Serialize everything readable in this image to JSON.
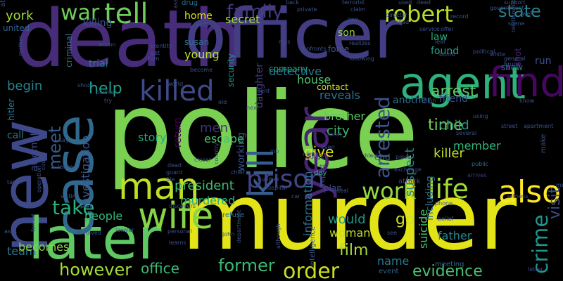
{
  "words": [
    {
      "text": "police",
      "color": "#7ad151",
      "rot": 0
    },
    {
      "text": "murder",
      "color": "#e2e418",
      "rot": 0
    },
    {
      "text": "death",
      "color": "#472c7a",
      "rot": 0
    },
    {
      "text": "officer",
      "color": "#433d84",
      "rot": 0
    },
    {
      "text": "new",
      "color": "#3e4989",
      "rot": -90
    },
    {
      "text": "later",
      "color": "#5ec962",
      "rot": 0
    },
    {
      "text": "case",
      "color": "#31688e",
      "rot": -90
    },
    {
      "text": "agent",
      "color": "#2db27d",
      "rot": 0
    },
    {
      "text": "year",
      "color": "#482475",
      "rot": -90
    },
    {
      "text": "kill",
      "color": "#365c8d",
      "rot": -90
    },
    {
      "text": "find",
      "color": "#46085c",
      "rot": 0
    },
    {
      "text": "killed",
      "color": "#3e4a89",
      "rot": 0
    },
    {
      "text": "man",
      "color": "#bddf26",
      "rot": 0
    },
    {
      "text": "wife",
      "color": "#86d549",
      "rot": 0
    },
    {
      "text": "prison",
      "color": "#414487",
      "rot": 0
    },
    {
      "text": "life",
      "color": "#a2da37",
      "rot": 0
    },
    {
      "text": "also",
      "color": "#fde725",
      "rot": 0
    },
    {
      "text": "work",
      "color": "#95d840",
      "rot": 0
    },
    {
      "text": "take",
      "color": "#29af7f",
      "rot": 0
    },
    {
      "text": "tell",
      "color": "#6ccd5a",
      "rot": 0
    },
    {
      "text": "family",
      "color": "#443983",
      "rot": 0
    },
    {
      "text": "robert",
      "color": "#b8de29",
      "rot": 0
    },
    {
      "text": "state",
      "color": "#26828e",
      "rot": 0
    },
    {
      "text": "war",
      "color": "#6ece58",
      "rot": 0
    },
    {
      "text": "killing",
      "color": "#3b528b",
      "rot": 0
    },
    {
      "text": "york",
      "color": "#a0da39",
      "rot": 0
    },
    {
      "text": "home",
      "color": "#dde318",
      "rot": 0
    },
    {
      "text": "secret",
      "color": "#a5db36",
      "rot": 0
    },
    {
      "text": "drug",
      "color": "#2c728e",
      "rot": 0
    },
    {
      "text": "son",
      "color": "#98d83e",
      "rot": 0
    },
    {
      "text": "law",
      "color": "#26ad81",
      "rot": 0
    },
    {
      "text": "found",
      "color": "#1fa187",
      "rot": 0
    },
    {
      "text": "help",
      "color": "#1f9e89",
      "rot": 0
    },
    {
      "text": "begin",
      "color": "#25848e",
      "rot": 0
    },
    {
      "text": "meet",
      "color": "#38588c",
      "rot": -90
    },
    {
      "text": "arrest",
      "color": "#5ec962",
      "rot": 0
    },
    {
      "text": "arrested",
      "color": "#3b528b",
      "rot": -90
    },
    {
      "text": "detective",
      "color": "#2a768e",
      "rot": 0
    },
    {
      "text": "house",
      "color": "#50c46a",
      "rot": 0
    },
    {
      "text": "reveals",
      "color": "#2c738e",
      "rot": 0
    },
    {
      "text": "contact",
      "color": "#cde11d",
      "rot": 0
    },
    {
      "text": "another",
      "color": "#2e6f8e",
      "rot": 0
    },
    {
      "text": "friend",
      "color": "#3a538b",
      "rot": 0
    },
    {
      "text": "show",
      "color": "#2a788e",
      "rot": 0
    },
    {
      "text": "brother",
      "color": "#5ec962",
      "rot": 0
    },
    {
      "text": "city",
      "color": "#3aba76",
      "rot": 0
    },
    {
      "text": "time",
      "color": "#7ad151",
      "rot": 0
    },
    {
      "text": "child",
      "color": "#1f978b",
      "rot": 0
    },
    {
      "text": "member",
      "color": "#2fb47c",
      "rot": 0
    },
    {
      "text": "killer",
      "color": "#c2df23",
      "rot": 0
    },
    {
      "text": "give",
      "color": "#e5e419",
      "rot": 0
    },
    {
      "text": "story",
      "color": "#21a685",
      "rot": 0
    },
    {
      "text": "men",
      "color": "#46327e",
      "rot": 0
    },
    {
      "text": "escape",
      "color": "#4ac16d",
      "rot": 0
    },
    {
      "text": "president",
      "color": "#3dbc74",
      "rot": 0
    },
    {
      "text": "murdered",
      "color": "#25ab82",
      "rot": 0
    },
    {
      "text": "people",
      "color": "#35b779",
      "rot": 0
    },
    {
      "text": "would",
      "color": "#1f958b",
      "rot": 0
    },
    {
      "text": "go",
      "color": "#d0e11c",
      "rot": 0
    },
    {
      "text": "woman",
      "color": "#c0df25",
      "rot": 0
    },
    {
      "text": "film",
      "color": "#a8db34",
      "rot": 0
    },
    {
      "text": "name",
      "color": "#2a788e",
      "rot": 0
    },
    {
      "text": "father",
      "color": "#26828e",
      "rot": 0
    },
    {
      "text": "however",
      "color": "#a5db36",
      "rot": 0
    },
    {
      "text": "office",
      "color": "#3dbc74",
      "rot": 0
    },
    {
      "text": "former",
      "color": "#3aba76",
      "rot": 0
    },
    {
      "text": "order",
      "color": "#c8e020",
      "rot": 0
    },
    {
      "text": "evidence",
      "color": "#48c16e",
      "rot": 0
    },
    {
      "text": "crime",
      "color": "#1f958b",
      "rot": -90
    },
    {
      "text": "visit",
      "color": "#3e4989",
      "rot": -90
    },
    {
      "text": "team",
      "color": "#2a788e",
      "rot": 0
    },
    {
      "text": "becomes",
      "color": "#8bd646",
      "rot": 0
    },
    {
      "text": "investigation",
      "color": "#39568c",
      "rot": -90
    },
    {
      "text": "return",
      "color": "#440154",
      "rot": -90
    },
    {
      "text": "information",
      "color": "#2c728e",
      "rot": -90
    },
    {
      "text": "suspect",
      "color": "#27808e",
      "rot": -90
    },
    {
      "text": "suicide",
      "color": "#46c06f",
      "rot": -90
    },
    {
      "text": "working",
      "color": "#3b528b",
      "rot": -90
    },
    {
      "text": "including",
      "color": "#2e6e8e",
      "rot": -90
    },
    {
      "text": "young",
      "color": "#bddf26",
      "rot": 0
    },
    {
      "text": "susan",
      "color": "#2e6f8e",
      "rot": 0
    },
    {
      "text": "criminal",
      "color": "#2d708e",
      "rot": -90
    },
    {
      "text": "attempt",
      "color": "#3f4889",
      "rot": -90
    },
    {
      "text": "united",
      "color": "#355f8d",
      "rot": 0
    },
    {
      "text": "hitler",
      "color": "#2c738e",
      "rot": -90
    },
    {
      "text": "call",
      "color": "#29798e",
      "rot": 0
    },
    {
      "text": "trial",
      "color": "#2a778e",
      "rot": 0
    },
    {
      "text": "security",
      "color": "#21918c",
      "rot": -90
    },
    {
      "text": "company",
      "color": "#1f9e89",
      "rot": 0
    },
    {
      "text": "daughter",
      "color": "#443a83",
      "rot": -90
    },
    {
      "text": "force",
      "color": "#3b528b",
      "rot": 0
    },
    {
      "text": "end",
      "color": "#31688e",
      "rot": 0
    },
    {
      "text": "day",
      "color": "#2db27d",
      "rot": 0
    },
    {
      "text": "plan",
      "color": "#3f4788",
      "rot": 0
    },
    {
      "text": "report",
      "color": "#404688",
      "rot": -90
    },
    {
      "text": "make",
      "color": "#3b528b",
      "rot": -90
    },
    {
      "text": "shot",
      "color": "#482374",
      "rot": -90
    },
    {
      "text": "run",
      "color": "#3b528b",
      "rot": 0
    },
    {
      "text": "meeting",
      "color": "#31688e",
      "rot": 0
    },
    {
      "text": "event",
      "color": "#31688e",
      "rot": 0
    },
    {
      "text": "intelligence",
      "color": "#3b528b",
      "rot": -90
    },
    {
      "text": "refuse",
      "color": "#2d708e",
      "rot": 0
    },
    {
      "text": "attack",
      "color": "#404588",
      "rot": 0
    },
    {
      "text": "know",
      "color": "#3b528b",
      "rot": 0
    },
    {
      "text": "using",
      "color": "#39568c",
      "rot": 0
    },
    {
      "text": "public",
      "color": "#2c738e",
      "rot": 0
    },
    {
      "text": "arrives",
      "color": "#453781",
      "rot": 0
    },
    {
      "text": "witness",
      "color": "#3e4989",
      "rot": 0
    },
    {
      "text": "letter",
      "color": "#3f4788",
      "rot": 0
    },
    {
      "text": "deal",
      "color": "#3b528b",
      "rot": 0
    },
    {
      "text": "place",
      "color": "#3b528b",
      "rot": 0
    },
    {
      "text": "exchange",
      "color": "#3e4989",
      "rot": 0
    },
    {
      "text": "black",
      "color": "#46327e",
      "rot": 0
    },
    {
      "text": "judge",
      "color": "#424086",
      "rot": 0
    },
    {
      "text": "named",
      "color": "#3b528b",
      "rot": 0
    },
    {
      "text": "even",
      "color": "#3b528b",
      "rot": 0
    },
    {
      "text": "local",
      "color": "#3e4989",
      "rot": 0
    },
    {
      "text": "high",
      "color": "#3e4989",
      "rot": 0
    },
    {
      "text": "director",
      "color": "#3b528b",
      "rot": 0
    },
    {
      "text": "lead",
      "color": "#3b528b",
      "rot": 0
    },
    {
      "text": "service",
      "color": "#3b528b",
      "rot": 0
    },
    {
      "text": "leaf",
      "color": "#39568c",
      "rot": 0
    },
    {
      "text": "bomb",
      "color": "#3b528b",
      "rot": 0
    },
    {
      "text": "offer",
      "color": "#3b528b",
      "rot": 0
    },
    {
      "text": "record",
      "color": "#3b528b",
      "rot": 0
    },
    {
      "text": "dead",
      "color": "#3b528b",
      "rot": 0
    },
    {
      "text": "support",
      "color": "#3b528b",
      "rot": 0
    },
    {
      "text": "government",
      "color": "#3b528b",
      "rot": 0
    },
    {
      "text": "used",
      "color": "#3b528b",
      "rot": 0
    },
    {
      "text": "terrorist",
      "color": "#3b528b",
      "rot": 0
    },
    {
      "text": "back",
      "color": "#3b528b",
      "rot": 0
    },
    {
      "text": "private",
      "color": "#3b528b",
      "rot": 0
    },
    {
      "text": "claim",
      "color": "#3b528b",
      "rot": 0
    },
    {
      "text": "one",
      "color": "#3b528b",
      "rot": 0
    },
    {
      "text": "realizes",
      "color": "#3b528b",
      "rot": 0
    },
    {
      "text": "following",
      "color": "#3b528b",
      "rot": 0
    },
    {
      "text": "confronts",
      "color": "#3b528b",
      "rot": 0
    },
    {
      "text": "ross",
      "color": "#3b528b",
      "rot": 0
    },
    {
      "text": "white",
      "color": "#3b528b",
      "rot": 0
    },
    {
      "text": "political",
      "color": "#3b528b",
      "rot": 0
    },
    {
      "text": "general",
      "color": "#3b528b",
      "rot": 0
    },
    {
      "text": "bruce",
      "color": "#3b528b",
      "rot": 0
    },
    {
      "text": "well",
      "color": "#3b528b",
      "rot": 0
    },
    {
      "text": "scene",
      "color": "#3b528b",
      "rot": 0
    },
    {
      "text": "relationship",
      "color": "#3b528b",
      "rot": -90
    },
    {
      "text": "assigned",
      "color": "#3b528b",
      "rot": -90
    },
    {
      "text": "body",
      "color": "#3b528b",
      "rot": 0
    },
    {
      "text": "action",
      "color": "#3b528b",
      "rot": 0
    },
    {
      "text": "identity",
      "color": "#3b528b",
      "rot": 0
    },
    {
      "text": "get",
      "color": "#3b528b",
      "rot": 0
    },
    {
      "text": "turn",
      "color": "#3b528b",
      "rot": 0
    },
    {
      "text": "become",
      "color": "#3b528b",
      "rot": 0
    },
    {
      "text": "world",
      "color": "#3b528b",
      "rot": 0
    },
    {
      "text": "mother",
      "color": "#3b528b",
      "rot": -90
    },
    {
      "text": "shoot",
      "color": "#3b528b",
      "rot": 0
    },
    {
      "text": "partner",
      "color": "#3b528b",
      "rot": 0
    },
    {
      "text": "sent",
      "color": "#3b528b",
      "rot": 0
    },
    {
      "text": "try",
      "color": "#3b528b",
      "rot": 0
    },
    {
      "text": "old",
      "color": "#3b528b",
      "rot": 0
    },
    {
      "text": "next",
      "color": "#3b528b",
      "rot": 0
    },
    {
      "text": "job",
      "color": "#3b528b",
      "rot": 0
    },
    {
      "text": "say",
      "color": "#3b528b",
      "rot": 0
    },
    {
      "text": "leave",
      "color": "#3b528b",
      "rot": 0
    },
    {
      "text": "court",
      "color": "#3b528b",
      "rot": -90
    },
    {
      "text": "country",
      "color": "#3b528b",
      "rot": -90
    },
    {
      "text": "closer",
      "color": "#3b528b",
      "rot": 0
    },
    {
      "text": "dead",
      "color": "#3b528b",
      "rot": 0
    },
    {
      "text": "guard",
      "color": "#3b528b",
      "rot": 0
    },
    {
      "text": "file",
      "color": "#3b528b",
      "rot": 0
    },
    {
      "text": "chief",
      "color": "#3b528b",
      "rot": 0
    },
    {
      "text": "number",
      "color": "#3b528b",
      "rot": 0
    },
    {
      "text": "hospital",
      "color": "#3b528b",
      "rot": 0
    },
    {
      "text": "car",
      "color": "#3b528b",
      "rot": 0
    },
    {
      "text": "taken",
      "color": "#3b528b",
      "rot": 0
    },
    {
      "text": "operation",
      "color": "#3b528b",
      "rot": -90
    },
    {
      "text": "victim",
      "color": "#3b528b",
      "rot": 0
    },
    {
      "text": "part",
      "color": "#3b528b",
      "rot": 0
    },
    {
      "text": "discovers",
      "color": "#3b528b",
      "rot": 0
    },
    {
      "text": "asks",
      "color": "#3b528b",
      "rot": 0
    },
    {
      "text": "forced",
      "color": "#3b528b",
      "rot": -90
    },
    {
      "text": "involved",
      "color": "#3b528b",
      "rot": 0
    },
    {
      "text": "lawyer",
      "color": "#3b528b",
      "rot": 0
    },
    {
      "text": "personal",
      "color": "#3b528b",
      "rot": 0
    },
    {
      "text": "learns",
      "color": "#3b528b",
      "rot": 0
    },
    {
      "text": "john",
      "color": "#3b528b",
      "rot": 0
    },
    {
      "text": "department",
      "color": "#3b528b",
      "rot": -90
    },
    {
      "text": "although",
      "color": "#3b528b",
      "rot": -90
    },
    {
      "text": "see",
      "color": "#3b528b",
      "rot": 0
    },
    {
      "text": "belief",
      "color": "#3b528b",
      "rot": 0
    },
    {
      "text": "phone",
      "color": "#3b528b",
      "rot": 0
    },
    {
      "text": "street",
      "color": "#3b528b",
      "rot": 0
    },
    {
      "text": "several",
      "color": "#3b528b",
      "rot": 0
    },
    {
      "text": "apartment",
      "color": "#3b528b",
      "rot": 0
    },
    {
      "text": "meanwhile",
      "color": "#3b528b",
      "rot": 0
    },
    {
      "text": "attorney",
      "color": "#3b528b",
      "rot": -90
    }
  ]
}
